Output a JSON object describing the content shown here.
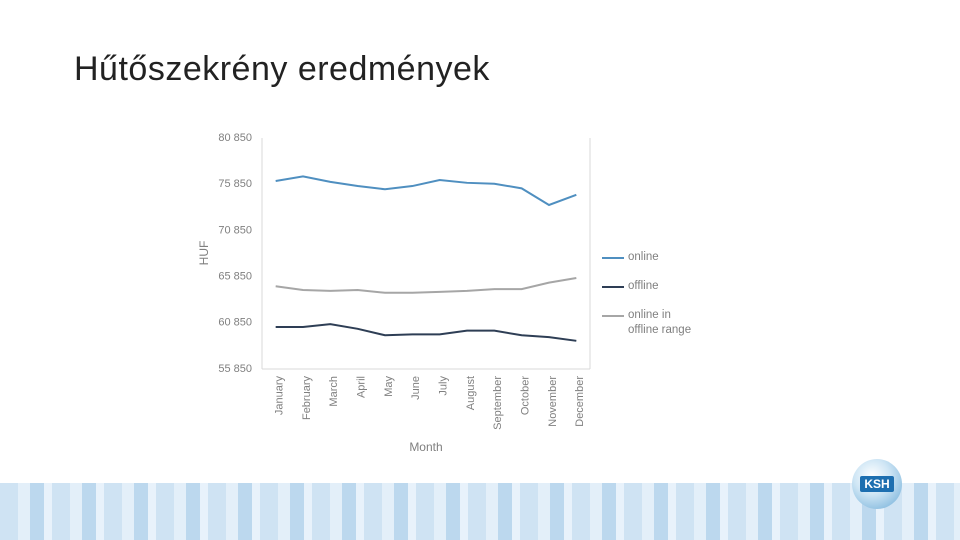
{
  "chart_data": {
    "type": "line",
    "title": "Hűtőszekrény eredmények",
    "xlabel": "Month",
    "ylabel": "HUF",
    "categories": [
      "January",
      "February",
      "March",
      "April",
      "May",
      "June",
      "July",
      "August",
      "September",
      "October",
      "November",
      "December"
    ],
    "series": [
      {
        "name": "online",
        "color": "#4f8fc0",
        "values": [
          76200,
          76700,
          76100,
          75650,
          75300,
          75650,
          76300,
          76000,
          75900,
          75400,
          73600,
          74700
        ]
      },
      {
        "name": "offline",
        "color": "#2e3e55",
        "values": [
          60400,
          60400,
          60700,
          60200,
          59500,
          59600,
          59600,
          60000,
          60000,
          59500,
          59300,
          58900
        ]
      },
      {
        "name": "online in offline range",
        "color": "#a6a6a6",
        "values": [
          64800,
          64400,
          64300,
          64400,
          64100,
          64100,
          64200,
          64300,
          64500,
          64500,
          65200,
          65700
        ]
      }
    ],
    "ylim": [
      55850,
      80850
    ],
    "yticks": [
      {
        "value": 55850,
        "label": "55 850"
      },
      {
        "value": 60850,
        "label": "60 850"
      },
      {
        "value": 65850,
        "label": "65 850"
      },
      {
        "value": 70850,
        "label": "70 850"
      },
      {
        "value": 75850,
        "label": "75 850"
      },
      {
        "value": 80850,
        "label": "80 850"
      }
    ],
    "grid": false,
    "legend": "right"
  },
  "logo": "KSH"
}
